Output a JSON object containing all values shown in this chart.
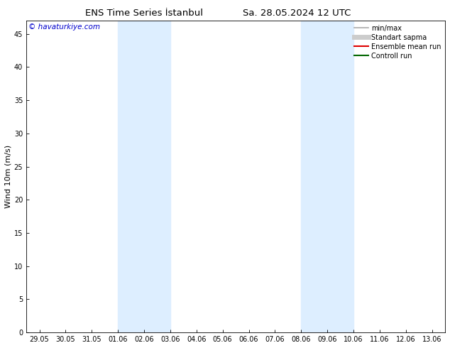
{
  "title1": "ENS Time Series İstanbul",
  "title2": "Sa. 28.05.2024 12 UTC",
  "ylabel": "Wind 10m (m/s)",
  "ylim": [
    0,
    47
  ],
  "yticks": [
    0,
    5,
    10,
    15,
    20,
    25,
    30,
    35,
    40,
    45
  ],
  "watermark": "© havaturkiye.com",
  "watermark_color": "#0000cc",
  "bg_color": "#ffffff",
  "band_color": "#ddeeff",
  "band_ranges": [
    [
      3,
      5
    ],
    [
      10,
      12
    ]
  ],
  "xtick_labels": [
    "29.05",
    "30.05",
    "31.05",
    "01.06",
    "02.06",
    "03.06",
    "04.06",
    "05.06",
    "06.06",
    "07.06",
    "08.06",
    "09.06",
    "10.06",
    "11.06",
    "12.06",
    "13.06"
  ],
  "legend_items": [
    {
      "label": "min/max",
      "color": "#aaaaaa",
      "lw": 1.2
    },
    {
      "label": "Standart sapma",
      "color": "#cccccc",
      "lw": 5
    },
    {
      "label": "Ensemble mean run",
      "color": "#dd0000",
      "lw": 1.5
    },
    {
      "label": "Controll run",
      "color": "#006600",
      "lw": 1.5
    }
  ],
  "title_fontsize": 9.5,
  "axis_fontsize": 7,
  "ylabel_fontsize": 8,
  "watermark_fontsize": 7.5,
  "legend_fontsize": 7
}
